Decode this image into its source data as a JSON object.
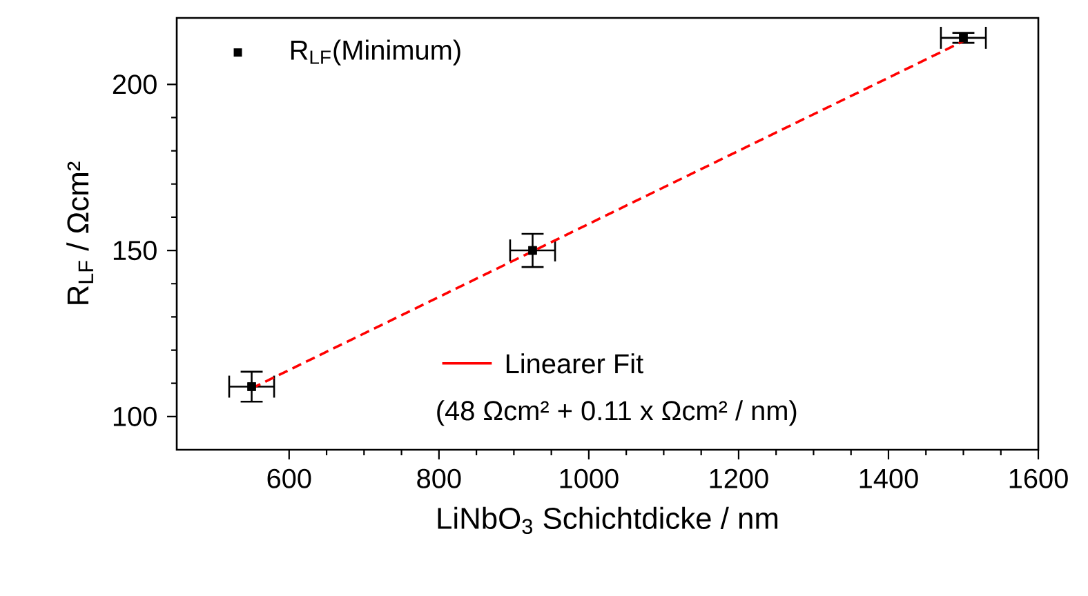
{
  "chart_data": {
    "type": "scatter",
    "xlabel": "LiNbO$_{3}$ Schichtdicke / nm",
    "ylabel": "R$_{LF}$ / Ωcm²",
    "xlim": [
      450,
      1600
    ],
    "xticks": [
      600,
      800,
      1000,
      1200,
      1400,
      1600
    ],
    "ylim": [
      90,
      220
    ],
    "yticks": [
      100,
      150,
      200
    ],
    "series": [
      {
        "name": "R$_{LF}$(Minimum)",
        "color": "#000000",
        "x": [
          550,
          925,
          1500
        ],
        "values": [
          109,
          150,
          214
        ],
        "errors": [
          4.5,
          5,
          1.5
        ],
        "xerrors": [
          30,
          30,
          30
        ],
        "marker": "square"
      },
      {
        "name": "Linearer Fit",
        "type": "line",
        "color": "#ff0000",
        "x": [
          550,
          1500
        ],
        "values": [
          108.5,
          213
        ],
        "line_style": "dashed",
        "marker": "none"
      }
    ],
    "annotations": [
      "(48 Ωcm² + 0.11 x Ωcm² / nm)"
    ],
    "legend": "top left",
    "grid": false
  }
}
